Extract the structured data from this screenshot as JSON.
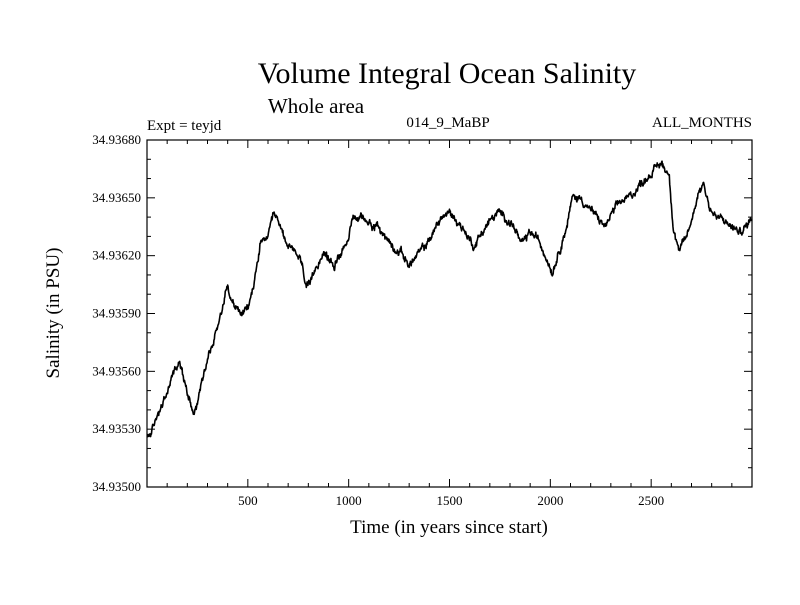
{
  "chart_data": {
    "type": "line",
    "title": "Volume Integral Ocean Salinity",
    "subtitle": "Whole area",
    "experiment_label": "Expt = teyjd",
    "run_label": "014_9_MaBP",
    "period_label": "ALL_MONTHS",
    "xlabel": "Time (in years since start)",
    "ylabel": "Salinity (in PSU)",
    "xlim": [
      0,
      3000
    ],
    "ylim": [
      34.935,
      34.9368
    ],
    "x_ticks": [
      {
        "value": 500,
        "label": "500"
      },
      {
        "value": 1000,
        "label": "1000"
      },
      {
        "value": 1500,
        "label": "1500"
      },
      {
        "value": 2000,
        "label": "2000"
      },
      {
        "value": 2500,
        "label": "2500"
      }
    ],
    "y_ticks": [
      {
        "value": 34.935,
        "label": "34.93500"
      },
      {
        "value": 34.9353,
        "label": "34.93530"
      },
      {
        "value": 34.9356,
        "label": "34.93560"
      },
      {
        "value": 34.9359,
        "label": "34.93590"
      },
      {
        "value": 34.9362,
        "label": "34.93620"
      },
      {
        "value": 34.9365,
        "label": "34.93650"
      },
      {
        "value": 34.9368,
        "label": "34.93680"
      }
    ],
    "x_minor_step": 100,
    "y_minor_step": 0.0001,
    "grid": false,
    "series": [
      {
        "name": "Salinity",
        "x": [
          0,
          30,
          60,
          100,
          130,
          160,
          200,
          230,
          250,
          270,
          300,
          330,
          360,
          400,
          430,
          460,
          500,
          530,
          560,
          600,
          630,
          660,
          690,
          720,
          760,
          790,
          810,
          840,
          870,
          900,
          930,
          960,
          990,
          1020,
          1060,
          1100,
          1140,
          1180,
          1220,
          1260,
          1300,
          1340,
          1380,
          1420,
          1460,
          1500,
          1540,
          1580,
          1620,
          1660,
          1700,
          1740,
          1780,
          1820,
          1860,
          1900,
          1940,
          1980,
          2010,
          2040,
          2080,
          2110,
          2150,
          2190,
          2230,
          2270,
          2310,
          2350,
          2390,
          2430,
          2470,
          2510,
          2550,
          2590,
          2610,
          2640,
          2670,
          2700,
          2730,
          2760,
          2790,
          2820,
          2860,
          2900,
          2940,
          2970,
          3000
        ],
        "values": [
          34.93525,
          34.9353,
          34.9354,
          34.93548,
          34.9356,
          34.93565,
          34.9355,
          34.9354,
          34.93543,
          34.93555,
          34.93568,
          34.93575,
          34.93588,
          34.93605,
          34.93595,
          34.9359,
          34.93592,
          34.93605,
          34.93625,
          34.9363,
          34.9364,
          34.93635,
          34.93628,
          34.93622,
          34.93618,
          34.93605,
          34.93603,
          34.93615,
          34.93622,
          34.93618,
          34.93615,
          34.93622,
          34.93628,
          34.93638,
          34.9364,
          34.93638,
          34.93635,
          34.9363,
          34.93625,
          34.93622,
          34.93615,
          34.9362,
          34.93625,
          34.93632,
          34.9364,
          34.93642,
          34.93638,
          34.93632,
          34.93625,
          34.93632,
          34.93638,
          34.93642,
          34.9364,
          34.93635,
          34.93625,
          34.93632,
          34.93628,
          34.9362,
          34.93612,
          34.93622,
          34.93635,
          34.9365,
          34.9365,
          34.93645,
          34.9364,
          34.93635,
          34.93642,
          34.93648,
          34.9365,
          34.93655,
          34.9366,
          34.93664,
          34.93668,
          34.93662,
          34.93635,
          34.93622,
          34.93628,
          34.93638,
          34.93652,
          34.93658,
          34.93645,
          34.9364,
          34.93638,
          34.93635,
          34.93632,
          34.93635,
          34.9364
        ]
      }
    ]
  }
}
